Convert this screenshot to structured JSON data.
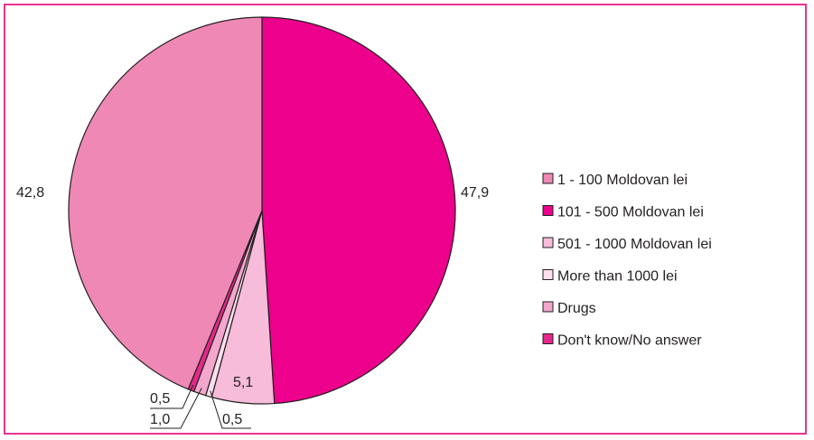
{
  "chart_data": {
    "type": "pie",
    "title": "",
    "categories": [
      "1 - 100 Moldovan lei",
      "101 - 500 Moldovan lei",
      "501 - 1000 Moldovan lei",
      "More than 1000 lei",
      "Drugs",
      "Don't know/No answer"
    ],
    "values": [
      42.8,
      47.9,
      5.1,
      0.5,
      1.0,
      0.5
    ],
    "data_labels": [
      "42,8",
      "47,9",
      "5,1",
      "0,5",
      "1,0",
      "0,5"
    ],
    "colors": [
      "#f088b6",
      "#ec008c",
      "#f6bcd9",
      "#fbe0ee",
      "#f4a7cc",
      "#e5288a"
    ],
    "slice_order_clockwise_from_top": [
      1,
      2,
      3,
      4,
      5,
      0
    ],
    "legend": "right"
  }
}
